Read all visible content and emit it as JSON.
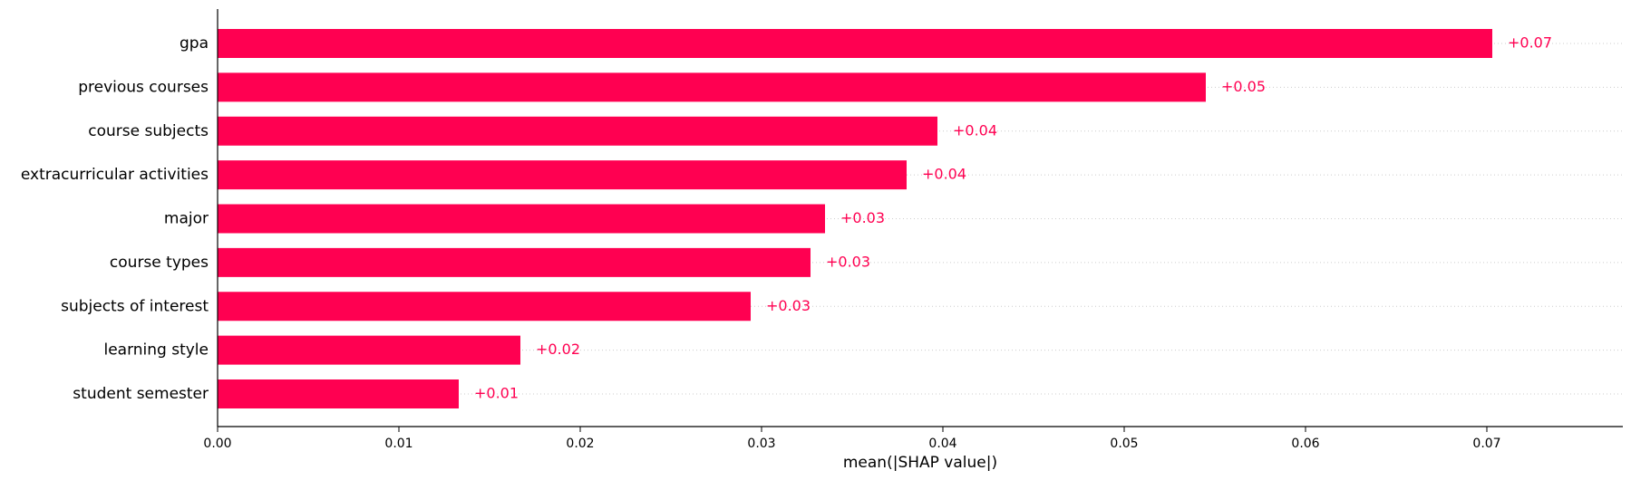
{
  "chart_data": {
    "type": "bar",
    "orientation": "horizontal",
    "title": "",
    "xlabel": "mean(|SHAP value|)",
    "ylabel": "",
    "xlim": [
      0.0,
      0.0775
    ],
    "x_ticks": [
      "0.00",
      "0.01",
      "0.02",
      "0.03",
      "0.04",
      "0.05",
      "0.06",
      "0.07"
    ],
    "categories": [
      "gpa",
      "previous courses",
      "course subjects",
      "extracurricular activities",
      "major",
      "course types",
      "subjects of interest",
      "learning style",
      "student semester"
    ],
    "values": [
      0.0703,
      0.0545,
      0.0397,
      0.038,
      0.0335,
      0.0327,
      0.0294,
      0.0167,
      0.0133
    ],
    "value_labels": [
      "+0.07",
      "+0.05",
      "+0.04",
      "+0.04",
      "+0.03",
      "+0.03",
      "+0.03",
      "+0.02",
      "+0.01"
    ],
    "colors": {
      "bar": "#ff0051",
      "label": "#ff0051",
      "gridline": "#cccccc",
      "axis": "#000000"
    },
    "gridlines": "dotted horizontal per row",
    "legend": "none"
  }
}
